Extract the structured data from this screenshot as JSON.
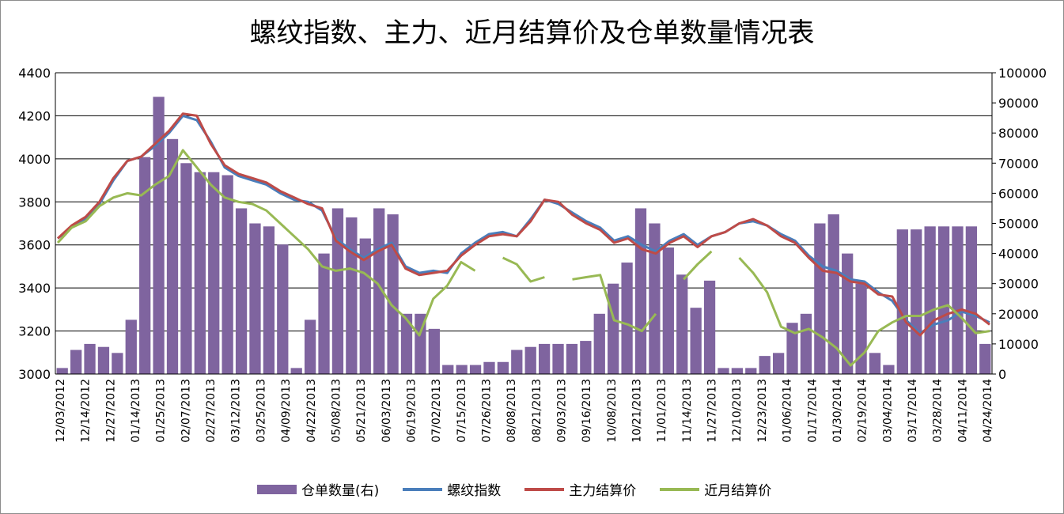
{
  "chart_data": {
    "type": "bar+line",
    "title": "螺纹指数、主力、近月结算价及仓单数量情况表",
    "left_axis": {
      "ylim": [
        3000,
        4400
      ],
      "ticks": [
        3000,
        3200,
        3400,
        3600,
        3800,
        4000,
        4200,
        4400
      ]
    },
    "right_axis": {
      "ylim": [
        0,
        100000
      ],
      "ticks": [
        0,
        10000,
        20000,
        30000,
        40000,
        50000,
        60000,
        70000,
        80000,
        90000,
        100000
      ]
    },
    "x_tick_labels": [
      "12/03/2012",
      "12/14/2012",
      "12/27/2012",
      "01/14/2013",
      "01/25/2013",
      "02/07/2013",
      "02/27/2013",
      "03/12/2013",
      "03/25/2013",
      "04/09/2013",
      "04/22/2013",
      "05/08/2013",
      "05/21/2013",
      "06/03/2013",
      "06/19/2013",
      "07/02/2013",
      "07/15/2013",
      "07/26/2013",
      "08/08/2013",
      "08/21/2013",
      "09/03/2013",
      "09/16/2013",
      "10/08/2013",
      "10/21/2013",
      "11/01/2013",
      "11/14/2013",
      "11/27/2013",
      "12/10/2013",
      "12/23/2013",
      "01/06/2014",
      "01/17/2014",
      "01/30/2014",
      "02/19/2014",
      "03/04/2014",
      "03/17/2014",
      "03/28/2014",
      "04/11/2014",
      "04/24/2014"
    ],
    "series": [
      {
        "name": "仓单数量(右)",
        "type": "bar",
        "axis": "right",
        "color": "#7f649f",
        "values": [
          2000,
          8000,
          10000,
          9000,
          7000,
          18000,
          72000,
          92000,
          78000,
          70000,
          67000,
          67000,
          66000,
          55000,
          50000,
          49000,
          43000,
          2000,
          18000,
          40000,
          55000,
          52000,
          45000,
          55000,
          53000,
          20000,
          20000,
          15000,
          3000,
          3000,
          3000,
          4000,
          4000,
          8000,
          9000,
          10000,
          10000,
          10000,
          11000,
          20000,
          30000,
          37000,
          55000,
          50000,
          42000,
          33000,
          22000,
          31000,
          2000,
          2000,
          2000,
          6000,
          7000,
          17000,
          20000,
          50000,
          53000,
          40000,
          30000,
          7000,
          3000,
          48000,
          48000,
          49000,
          49000,
          49000,
          49000,
          10000
        ]
      },
      {
        "name": "螺纹指数",
        "type": "line",
        "axis": "left",
        "color": "#4a7ebb",
        "values": [
          3630,
          3680,
          3720,
          3790,
          3900,
          3990,
          4010,
          4060,
          4120,
          4200,
          4180,
          4080,
          3960,
          3920,
          3900,
          3880,
          3840,
          3810,
          3800,
          3760,
          3630,
          3580,
          3540,
          3580,
          3610,
          3500,
          3470,
          3480,
          3470,
          3560,
          3610,
          3650,
          3660,
          3640,
          3720,
          3810,
          3790,
          3750,
          3710,
          3680,
          3620,
          3640,
          3600,
          3570,
          3620,
          3650,
          3600,
          3640,
          3660,
          3700,
          3710,
          3690,
          3650,
          3620,
          3550,
          3500,
          3480,
          3440,
          3430,
          3380,
          3340,
          3250,
          3190,
          3230,
          3250,
          3290,
          3270,
          3240
        ]
      },
      {
        "name": "主力结算价",
        "type": "line",
        "axis": "left",
        "color": "#be4b48",
        "values": [
          3630,
          3690,
          3730,
          3800,
          3910,
          3990,
          4010,
          4070,
          4130,
          4210,
          4200,
          4070,
          3970,
          3930,
          3910,
          3890,
          3850,
          3820,
          3790,
          3770,
          3620,
          3570,
          3530,
          3570,
          3600,
          3490,
          3460,
          3470,
          3480,
          3550,
          3600,
          3640,
          3650,
          3640,
          3710,
          3810,
          3800,
          3740,
          3700,
          3670,
          3610,
          3630,
          3580,
          3560,
          3610,
          3640,
          3590,
          3640,
          3660,
          3700,
          3720,
          3690,
          3640,
          3610,
          3540,
          3480,
          3470,
          3430,
          3420,
          3370,
          3360,
          3240,
          3180,
          3250,
          3280,
          3300,
          3280,
          3230
        ]
      },
      {
        "name": "近月结算价",
        "type": "line",
        "axis": "left",
        "color": "#98b954",
        "values": [
          3610,
          3680,
          3710,
          3780,
          3820,
          3840,
          3830,
          3880,
          3920,
          4040,
          3960,
          3880,
          3820,
          3800,
          3790,
          3760,
          3700,
          3640,
          3580,
          3500,
          3480,
          3490,
          3470,
          3420,
          3320,
          3260,
          3180,
          3350,
          3410,
          3520,
          3480,
          null,
          3540,
          3510,
          3430,
          3450,
          null,
          3440,
          3450,
          3460,
          3250,
          3230,
          3200,
          3280,
          null,
          3440,
          3510,
          3570,
          null,
          3540,
          3470,
          3380,
          3220,
          3190,
          3210,
          3170,
          3120,
          3040,
          3100,
          3200,
          3240,
          3270,
          3270,
          3300,
          3320,
          3260,
          3190,
          3200
        ]
      }
    ]
  }
}
